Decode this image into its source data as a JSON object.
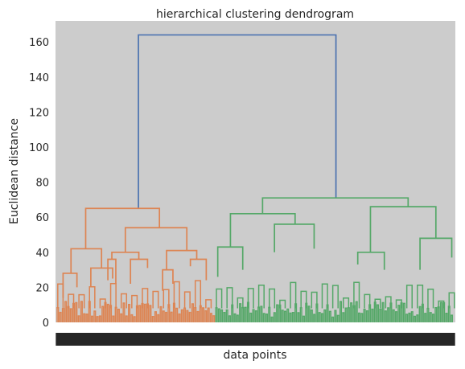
{
  "chart_data": {
    "type": "dendrogram",
    "title": "hierarchical clustering dendrogram",
    "xlabel": "data points",
    "ylabel": "Euclidean distance",
    "ylim": [
      0,
      172
    ],
    "yticks": [
      0,
      20,
      40,
      60,
      80,
      100,
      120,
      140,
      160
    ],
    "grid": false,
    "background": "#cccccc",
    "colors": {
      "left_cluster": "#dd8452",
      "right_cluster": "#55a868",
      "root": "#4c72b0",
      "leaf_labels": "#262626"
    },
    "links": [
      {
        "name": "root",
        "color": "root",
        "height": 164,
        "left": {
          "x": 0.205,
          "h": 65
        },
        "right": {
          "x": 0.703,
          "h": 71
        }
      },
      {
        "name": "left-top",
        "color": "left_cluster",
        "height": 65,
        "left": {
          "x": 0.072,
          "h": 42
        },
        "right": {
          "x": 0.258,
          "h": 54
        }
      },
      {
        "name": "left-a",
        "color": "left_cluster",
        "height": 42,
        "left": {
          "x": 0.035,
          "h": 28
        },
        "right": {
          "x": 0.112,
          "h": 31
        }
      },
      {
        "name": "left-a1",
        "color": "left_cluster",
        "height": 28,
        "left": {
          "x": 0.015,
          "h": 14
        },
        "right": {
          "x": 0.05,
          "h": 20
        }
      },
      {
        "name": "left-a2",
        "color": "left_cluster",
        "height": 31,
        "left": {
          "x": 0.085,
          "h": 20
        },
        "right": {
          "x": 0.14,
          "h": 25
        }
      },
      {
        "name": "left-b",
        "color": "left_cluster",
        "height": 54,
        "left": {
          "x": 0.172,
          "h": 40
        },
        "right": {
          "x": 0.327,
          "h": 41
        }
      },
      {
        "name": "left-b1",
        "color": "left_cluster",
        "height": 40,
        "left": {
          "x": 0.138,
          "h": 36
        },
        "right": {
          "x": 0.206,
          "h": 36
        }
      },
      {
        "name": "left-b1a",
        "color": "left_cluster",
        "height": 36,
        "left": {
          "x": 0.128,
          "h": 24
        },
        "right": {
          "x": 0.148,
          "h": 22
        }
      },
      {
        "name": "left-b1b",
        "color": "left_cluster",
        "height": 36,
        "left": {
          "x": 0.185,
          "h": 22
        },
        "right": {
          "x": 0.228,
          "h": 31
        }
      },
      {
        "name": "left-b2",
        "color": "left_cluster",
        "height": 41,
        "left": {
          "x": 0.276,
          "h": 30
        },
        "right": {
          "x": 0.352,
          "h": 36
        }
      },
      {
        "name": "left-b2a",
        "color": "left_cluster",
        "height": 30,
        "left": {
          "x": 0.266,
          "h": 18
        },
        "right": {
          "x": 0.292,
          "h": 22
        }
      },
      {
        "name": "left-b2b",
        "color": "left_cluster",
        "height": 36,
        "left": {
          "x": 0.336,
          "h": 32
        },
        "right": {
          "x": 0.376,
          "h": 24
        }
      },
      {
        "name": "right-top",
        "color": "right_cluster",
        "height": 71,
        "left": {
          "x": 0.518,
          "h": 62
        },
        "right": {
          "x": 0.885,
          "h": 66
        }
      },
      {
        "name": "right-a",
        "color": "right_cluster",
        "height": 62,
        "left": {
          "x": 0.437,
          "h": 43
        },
        "right": {
          "x": 0.6,
          "h": 56
        }
      },
      {
        "name": "right-a1",
        "color": "right_cluster",
        "height": 43,
        "left": {
          "x": 0.405,
          "h": 26
        },
        "right": {
          "x": 0.468,
          "h": 30
        }
      },
      {
        "name": "right-a2",
        "color": "right_cluster",
        "height": 56,
        "left": {
          "x": 0.548,
          "h": 40
        },
        "right": {
          "x": 0.648,
          "h": 42
        }
      },
      {
        "name": "right-b",
        "color": "right_cluster",
        "height": 66,
        "left": {
          "x": 0.79,
          "h": 40
        },
        "right": {
          "x": 0.955,
          "h": 48
        }
      },
      {
        "name": "right-b1",
        "color": "right_cluster",
        "height": 40,
        "left": {
          "x": 0.758,
          "h": 33
        },
        "right": {
          "x": 0.825,
          "h": 30
        }
      },
      {
        "name": "right-b2",
        "color": "right_cluster",
        "height": 48,
        "left": {
          "x": 0.915,
          "h": 30
        },
        "right": {
          "x": 0.995,
          "h": 37
        }
      }
    ],
    "leaf_split": 0.4,
    "leaf_count": 300
  }
}
